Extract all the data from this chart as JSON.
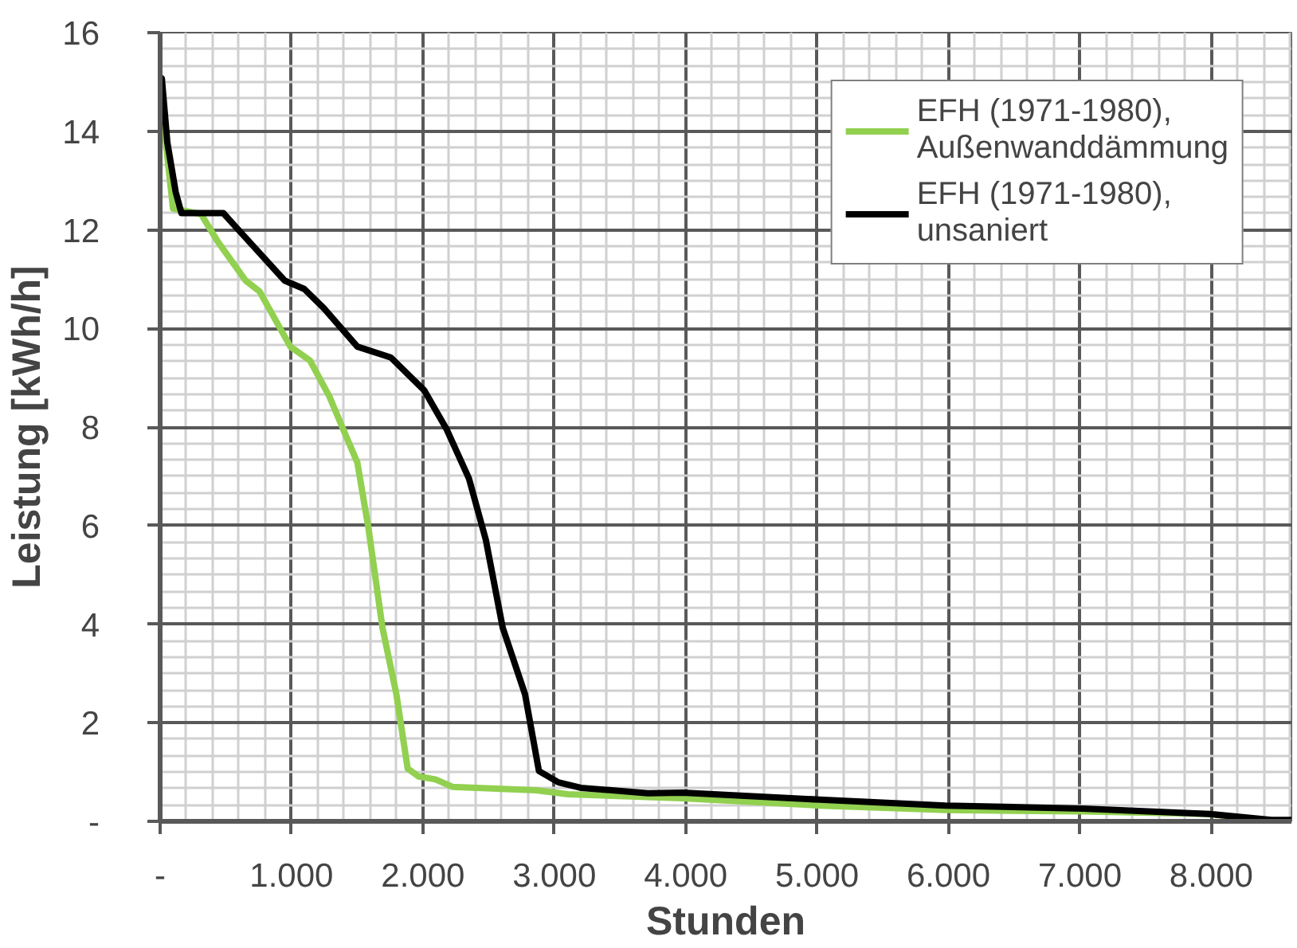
{
  "chart_data": {
    "type": "line",
    "xlabel": "Stunden",
    "ylabel": "Leistung [kWh/h]",
    "x": [
      0,
      34,
      98,
      311,
      439,
      651,
      757,
      991,
      1140,
      1288,
      1438,
      1501,
      1586,
      1692,
      1798,
      1884,
      1968,
      2096,
      2224,
      2861,
      3105,
      3975,
      5020,
      5977,
      7023,
      7980,
      8457
    ],
    "series": [
      {
        "name": "EFH (1971-1980),\nAußenwanddämmung",
        "color": "#92d050",
        "values": [
          14.6,
          14.0,
          12.43,
          12.32,
          11.76,
          10.97,
          10.75,
          9.63,
          9.35,
          8.62,
          7.67,
          7.28,
          5.94,
          3.93,
          2.58,
          1.07,
          0.91,
          0.85,
          0.7,
          0.63,
          0.55,
          0.47,
          0.32,
          0.23,
          0.2,
          0.15,
          0.0
        ]
      },
      {
        "name": "EFH (1971-1980),\nunsaniert",
        "color": "#000000",
        "x": [
          0,
          13,
          55,
          119,
          162,
          481,
          565,
          736,
          948,
          1097,
          1246,
          1501,
          1756,
          2011,
          2181,
          2351,
          2479,
          2607,
          2777,
          2883,
          3032,
          3202,
          3712,
          3975,
          5020,
          5977,
          7023,
          7980,
          8457,
          8610
        ],
        "values": [
          15.1,
          15.07,
          13.77,
          12.76,
          12.34,
          12.34,
          12.09,
          11.59,
          10.97,
          10.8,
          10.41,
          9.63,
          9.41,
          8.74,
          7.95,
          6.95,
          5.71,
          3.93,
          2.58,
          1.02,
          0.79,
          0.68,
          0.57,
          0.58,
          0.44,
          0.32,
          0.26,
          0.15,
          0.03,
          0.03
        ]
      }
    ],
    "xlim": [
      0,
      8610
    ],
    "ylim": [
      0,
      16
    ],
    "xticks": [
      {
        "value": 0,
        "label": "-"
      },
      {
        "value": 1000,
        "label": "1.000"
      },
      {
        "value": 2000,
        "label": "2.000"
      },
      {
        "value": 3000,
        "label": "3.000"
      },
      {
        "value": 4000,
        "label": "4.000"
      },
      {
        "value": 5000,
        "label": "5.000"
      },
      {
        "value": 6000,
        "label": "6.000"
      },
      {
        "value": 7000,
        "label": "7.000"
      },
      {
        "value": 8000,
        "label": "8.000"
      }
    ],
    "yticks": [
      {
        "value": 0,
        "label": "-"
      },
      2,
      4,
      6,
      8,
      10,
      12,
      14,
      16
    ],
    "grid": true,
    "legend": "top right",
    "marker": "none",
    "line_style": "solid"
  }
}
